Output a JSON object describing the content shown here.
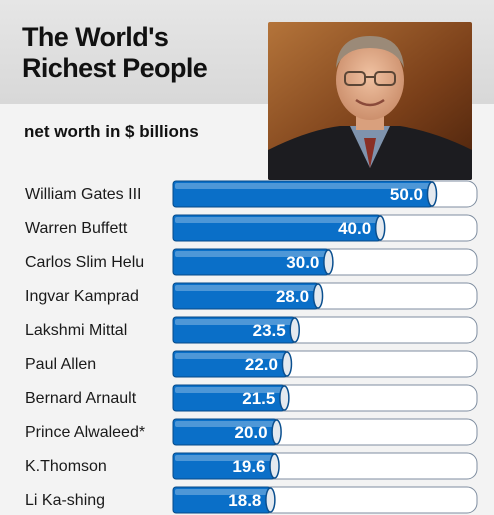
{
  "chart_data": {
    "type": "bar",
    "orientation": "horizontal",
    "title": "The World's\nRichest People",
    "subtitle": "net worth in $ billions",
    "categories": [
      "William Gates III",
      "Warren Buffett",
      "Carlos Slim Helu",
      "Ingvar Kamprad",
      "Lakshmi Mittal",
      "Paul Allen",
      "Bernard Arnault",
      "Prince Alwaleed*",
      "K.Thomson",
      "Li Ka-shing"
    ],
    "values": [
      50.0,
      40.0,
      30.0,
      28.0,
      23.5,
      22.0,
      21.5,
      20.0,
      19.6,
      18.8
    ],
    "value_labels": [
      "50.0",
      "40.0",
      "30.0",
      "28.0",
      "23.5",
      "22.0",
      "21.5",
      "20.0",
      "19.6",
      "18.8"
    ],
    "xlim": [
      0,
      50
    ],
    "grid": false,
    "bar_color": "#0a6fc8",
    "track_color": "#ffffff"
  },
  "colors": {
    "background": "#f3f3f3",
    "header_band": "#dcdcdc",
    "text": "#111111"
  }
}
